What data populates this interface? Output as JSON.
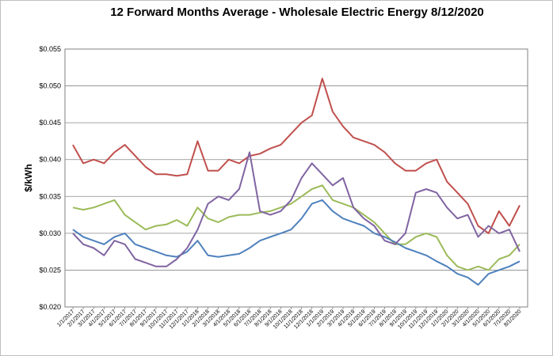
{
  "chart_data": {
    "type": "line",
    "title": "12 Forward Months Average - Wholesale Electric Energy 8/12/2020",
    "ylabel": "$/kWh",
    "xlabel": "",
    "ylim": [
      0.02,
      0.055
    ],
    "yticks": [
      "$0.020",
      "$0.025",
      "$0.030",
      "$0.035",
      "$0.040",
      "$0.045",
      "$0.050",
      "$0.055"
    ],
    "ytick_values": [
      0.02,
      0.025,
      0.03,
      0.035,
      0.04,
      0.045,
      0.05,
      0.055
    ],
    "x_ticks": [
      "1/1/2017",
      "2/1/2017",
      "3/1/2017",
      "4/1/2017",
      "5/1/2017",
      "6/1/2017",
      "7/1/2017",
      "8/1/2017",
      "9/1/2017",
      "10/1/2017",
      "11/1/2017",
      "12/1/2017",
      "1/1/2018",
      "2/1/2018",
      "3/1/2018",
      "4/1/2018",
      "5/1/2018",
      "6/1/2018",
      "7/1/2018",
      "8/1/2018",
      "9/1/2018",
      "10/1/2018",
      "11/1/2018",
      "12/1/2018",
      "1/1/2019",
      "2/1/2019",
      "3/1/2019",
      "4/1/2019",
      "5/1/2019",
      "6/1/2019",
      "7/1/2019",
      "8/1/2019",
      "9/1/2019",
      "10/1/2019",
      "11/1/2019",
      "12/1/2019",
      "1/1/2020",
      "2/1/2020",
      "3/1/2020",
      "4/1/2020",
      "5/1/2020",
      "6/1/2020",
      "7/1/2020",
      "8/1/2020"
    ],
    "grid": true,
    "legend": "none",
    "series": [
      {
        "color": "#c0504d",
        "values": [
          0.042,
          0.0395,
          0.04,
          0.0395,
          0.041,
          0.042,
          0.0405,
          0.039,
          0.038,
          0.038,
          0.0378,
          0.038,
          0.0425,
          0.0385,
          0.0385,
          0.04,
          0.0395,
          0.0405,
          0.0408,
          0.0415,
          0.042,
          0.0435,
          0.045,
          0.046,
          0.051,
          0.0465,
          0.0445,
          0.043,
          0.0425,
          0.042,
          0.041,
          0.0395,
          0.0385,
          0.0385,
          0.0395,
          0.04,
          0.037,
          0.0355,
          0.034,
          0.031,
          0.03,
          0.033,
          0.031,
          0.0338
        ]
      },
      {
        "color": "#9bbb59",
        "values": [
          0.0335,
          0.0332,
          0.0335,
          0.034,
          0.0345,
          0.0325,
          0.0315,
          0.0305,
          0.031,
          0.0312,
          0.0318,
          0.031,
          0.0335,
          0.032,
          0.0315,
          0.0322,
          0.0325,
          0.0325,
          0.0328,
          0.033,
          0.0335,
          0.034,
          0.035,
          0.036,
          0.0365,
          0.0345,
          0.034,
          0.0335,
          0.0325,
          0.0315,
          0.03,
          0.0285,
          0.0285,
          0.0295,
          0.03,
          0.0295,
          0.027,
          0.0255,
          0.025,
          0.0255,
          0.025,
          0.0265,
          0.027,
          0.0285
        ]
      },
      {
        "color": "#4f81bd",
        "values": [
          0.0305,
          0.0295,
          0.029,
          0.0285,
          0.0295,
          0.03,
          0.0285,
          0.028,
          0.0275,
          0.027,
          0.0268,
          0.0275,
          0.029,
          0.027,
          0.0268,
          0.027,
          0.0272,
          0.028,
          0.029,
          0.0295,
          0.03,
          0.0305,
          0.032,
          0.034,
          0.0345,
          0.033,
          0.032,
          0.0315,
          0.031,
          0.03,
          0.0295,
          0.0288,
          0.028,
          0.0275,
          0.027,
          0.0262,
          0.0255,
          0.0245,
          0.024,
          0.023,
          0.0245,
          0.025,
          0.0255,
          0.0262
        ]
      },
      {
        "color": "#8064a2",
        "values": [
          0.03,
          0.0285,
          0.028,
          0.027,
          0.029,
          0.0285,
          0.0265,
          0.026,
          0.0255,
          0.0255,
          0.0265,
          0.028,
          0.0305,
          0.034,
          0.035,
          0.0345,
          0.036,
          0.041,
          0.033,
          0.0325,
          0.033,
          0.0345,
          0.0375,
          0.0395,
          0.038,
          0.0365,
          0.0375,
          0.0335,
          0.032,
          0.031,
          0.029,
          0.0285,
          0.03,
          0.0355,
          0.036,
          0.0355,
          0.0335,
          0.032,
          0.0325,
          0.0295,
          0.031,
          0.03,
          0.0305,
          0.0275
        ]
      }
    ]
  }
}
